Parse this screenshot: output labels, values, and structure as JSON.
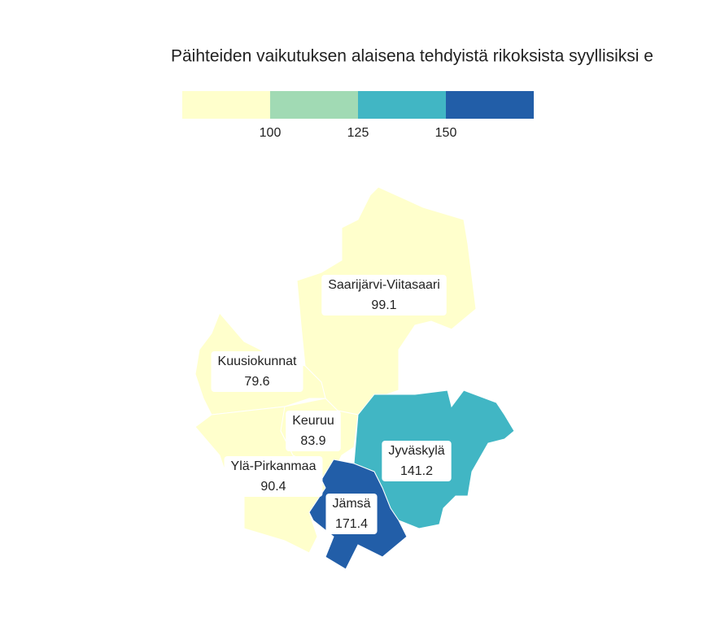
{
  "map": {
    "title": "Päihteiden vaikutuksen alaisena tehdyistä rikoksista syyllisiksi e",
    "legend": {
      "thresholds": [
        100,
        125,
        150
      ],
      "colors": [
        "#ffffcc",
        "#a1dab4",
        "#41b6c4",
        "#225ea8"
      ]
    },
    "regions": [
      {
        "name": "Saarijärvi-Viitasaari",
        "value": 99.1
      },
      {
        "name": "Kuusiokunnat",
        "value": 79.6
      },
      {
        "name": "Keuruu",
        "value": 83.9
      },
      {
        "name": "Ylä-Pirkanmaa",
        "value": 90.4
      },
      {
        "name": "Jyväskylä",
        "value": 141.2
      },
      {
        "name": "Jämsä",
        "value": 171.4
      }
    ]
  }
}
